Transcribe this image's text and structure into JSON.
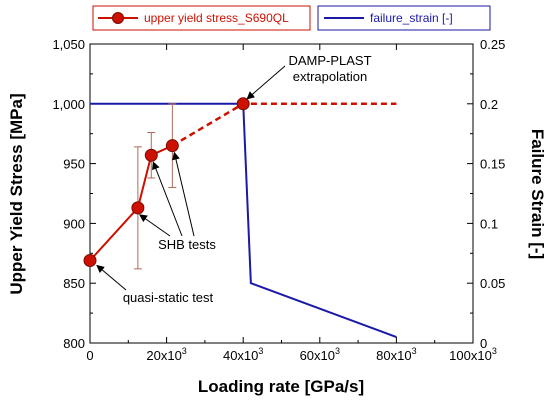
{
  "chart_data": {
    "type": "line",
    "xlabel": "Loading rate [GPa/s]",
    "ylabel": "Upper Yield Stress [MPa]",
    "y2label": "Failure Strain [-]",
    "xlim": [
      0,
      100000
    ],
    "ylim": [
      800,
      1050
    ],
    "y2lim": [
      0,
      0.25
    ],
    "x_ticks": [
      0,
      20000,
      40000,
      60000,
      80000,
      100000
    ],
    "x_tick_labels": [
      {
        "base": "0",
        "exp": ""
      },
      {
        "base": "20x10",
        "exp": "3"
      },
      {
        "base": "40x10",
        "exp": "3"
      },
      {
        "base": "60x10",
        "exp": "3"
      },
      {
        "base": "80x10",
        "exp": "3"
      },
      {
        "base": "100x10",
        "exp": "3"
      }
    ],
    "y_ticks": [
      800,
      850,
      900,
      950,
      1000,
      1050
    ],
    "y_tick_labels": [
      "800",
      "850",
      "900",
      "950",
      "1,000",
      "1,050"
    ],
    "y2_ticks": [
      0,
      0.05,
      0.1,
      0.15,
      0.2,
      0.25
    ],
    "y2_tick_labels": [
      "0",
      "0.05",
      "0.1",
      "0.15",
      "0.2",
      "0.25"
    ],
    "series": [
      {
        "name": "upper yield stress_S690QL",
        "axis": "left",
        "color": "#cc1100",
        "marker": "circle",
        "x": [
          0,
          12500,
          16000,
          21500,
          40000
        ],
        "y": [
          869,
          913,
          957,
          965,
          1000
        ],
        "error_plus": [
          0,
          51,
          19,
          35,
          0
        ],
        "error_minus": [
          0,
          51,
          19,
          35,
          0
        ],
        "extrapolation": {
          "x": [
            21500,
            40000,
            80000
          ],
          "y": [
            965,
            1000,
            1000
          ]
        }
      },
      {
        "name": "failure_strain [-]",
        "axis": "right",
        "color": "#1a1aa6",
        "x": [
          0,
          40000,
          42000,
          80000
        ],
        "y": [
          0.2,
          0.2,
          0.05,
          0.005
        ]
      }
    ],
    "annotations": [
      {
        "text": [
          "DAMP-PLAST",
          "extrapolation"
        ],
        "target": {
          "x": 40000,
          "y": 1000
        }
      },
      {
        "text": [
          "SHB tests"
        ],
        "targets": [
          {
            "x": 12500,
            "y": 913
          },
          {
            "x": 16000,
            "y": 957
          },
          {
            "x": 21500,
            "y": 965
          }
        ]
      },
      {
        "text": [
          "quasi-static test"
        ],
        "target": {
          "x": 0,
          "y": 869
        }
      }
    ],
    "legend_placement": "top",
    "grid": false
  }
}
